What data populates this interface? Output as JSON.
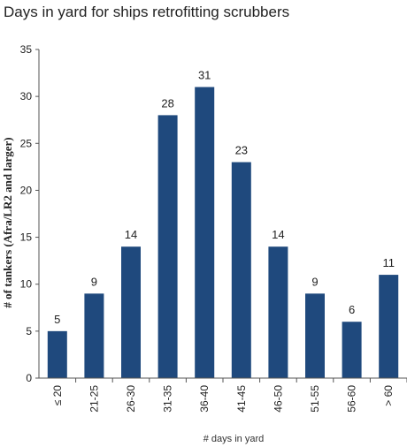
{
  "chart_data": {
    "type": "bar",
    "title": "Days in yard for ships retrofitting  scrubbers",
    "xlabel": "# days in yard",
    "ylabel": "# of tankers (Afra/LR2 and larger)",
    "categories": [
      "≤ 20",
      "21-25",
      "26-30",
      "31-35",
      "36-40",
      "41-45",
      "46-50",
      "51-55",
      "56-60",
      "> 60"
    ],
    "values": [
      5,
      9,
      14,
      28,
      31,
      23,
      14,
      9,
      6,
      11
    ],
    "ylim": [
      0,
      35
    ],
    "yticks": [
      0,
      5,
      10,
      15,
      20,
      25,
      30,
      35
    ],
    "bar_color": "#1F497D",
    "grid": false,
    "legend": "none",
    "data_labels": true
  }
}
